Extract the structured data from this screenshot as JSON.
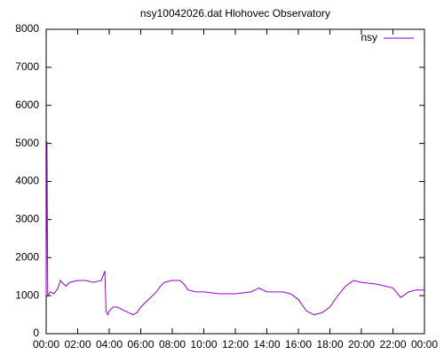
{
  "chart_data": {
    "type": "line",
    "title": "nsy10042026.dat Hlohovec Observatory",
    "x": [
      0,
      0.05,
      0.1,
      0.25,
      0.5,
      0.75,
      0.9,
      1.0,
      1.25,
      1.5,
      2.0,
      2.5,
      3.0,
      3.5,
      3.72,
      3.8,
      3.9,
      4.0,
      4.25,
      4.5,
      5.0,
      5.5,
      5.75,
      6.0,
      6.5,
      7.0,
      7.25,
      7.5,
      8.0,
      8.5,
      8.75,
      9.0,
      9.5,
      10,
      11,
      12,
      13,
      13.5,
      14,
      15,
      15.5,
      16,
      16.5,
      17,
      17.5,
      18,
      18.5,
      19,
      19.5,
      20,
      21,
      21.5,
      22,
      22.5,
      23,
      23.5,
      24
    ],
    "series": [
      {
        "name": "nsy",
        "color": "#9400d3",
        "values": [
          1000,
          5050,
          1000,
          1100,
          1050,
          1200,
          1400,
          1350,
          1250,
          1350,
          1400,
          1400,
          1350,
          1400,
          1650,
          600,
          500,
          600,
          700,
          700,
          600,
          500,
          550,
          700,
          900,
          1100,
          1250,
          1350,
          1400,
          1400,
          1300,
          1150,
          1100,
          1100,
          1050,
          1050,
          1100,
          1200,
          1100,
          1100,
          1050,
          900,
          600,
          500,
          550,
          700,
          1000,
          1250,
          1400,
          1350,
          1300,
          1250,
          1200,
          950,
          1100,
          1150,
          1150
        ]
      }
    ],
    "xlim": [
      0,
      24
    ],
    "xticks": [
      {
        "value": 0,
        "label": "00:00"
      },
      {
        "value": 2,
        "label": "02:00"
      },
      {
        "value": 4,
        "label": "04:00"
      },
      {
        "value": 6,
        "label": "06:00"
      },
      {
        "value": 8,
        "label": "08:00"
      },
      {
        "value": 10,
        "label": "10:00"
      },
      {
        "value": 12,
        "label": "12:00"
      },
      {
        "value": 14,
        "label": "14:00"
      },
      {
        "value": 16,
        "label": "16:00"
      },
      {
        "value": 18,
        "label": "18:00"
      },
      {
        "value": 20,
        "label": "20:00"
      },
      {
        "value": 22,
        "label": "22:00"
      },
      {
        "value": 24,
        "label": "00:00"
      }
    ],
    "ylim": [
      0,
      8000
    ],
    "yticks": [
      0,
      1000,
      2000,
      3000,
      4000,
      5000,
      6000,
      7000,
      8000
    ],
    "grid": false,
    "legend": "top-right"
  }
}
